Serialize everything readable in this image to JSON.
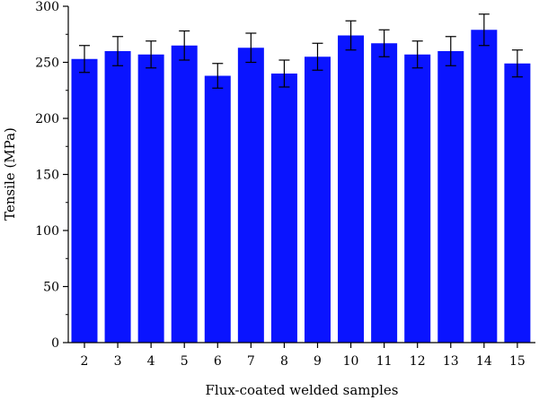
{
  "chart_data": {
    "type": "bar",
    "xlabel": "Flux-coated welded samples",
    "ylabel": "Tensile (MPa)",
    "ylim": [
      0,
      300
    ],
    "yticks": [
      0,
      50,
      100,
      150,
      200,
      250,
      300
    ],
    "categories": [
      "2",
      "3",
      "4",
      "5",
      "6",
      "7",
      "8",
      "9",
      "10",
      "11",
      "12",
      "13",
      "14",
      "15"
    ],
    "values": [
      253,
      260,
      257,
      265,
      238,
      263,
      240,
      255,
      274,
      267,
      257,
      260,
      279,
      249
    ],
    "errors": [
      12,
      13,
      12,
      13,
      11,
      13,
      12,
      12,
      13,
      12,
      12,
      13,
      14,
      12
    ],
    "bar_color": "#0a14ff",
    "grid": false,
    "legend": "none"
  }
}
